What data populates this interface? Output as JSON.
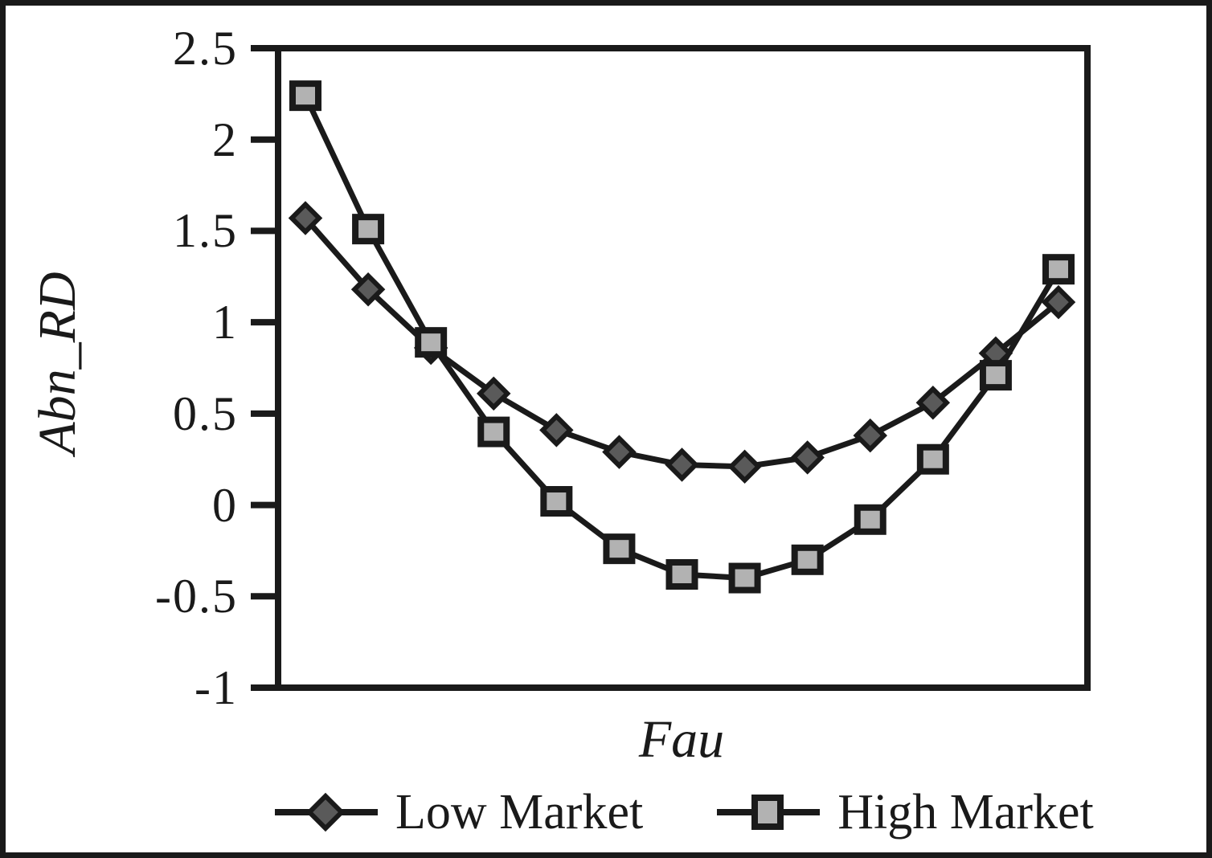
{
  "figure": {
    "background": "#ffffff",
    "frame_color": "#1a1a1a",
    "axis_color": "#1a1a1a",
    "text_color": "#1a1a1a"
  },
  "chart_data": {
    "type": "line",
    "x": [
      1,
      2,
      3,
      4,
      5,
      6,
      7,
      8,
      9,
      10,
      11,
      12,
      13
    ],
    "series": [
      {
        "name": "Low Market",
        "marker": "diamond",
        "marker_fill": "#5a5a5a",
        "line_color": "#1a1a1a",
        "values": [
          1.57,
          1.18,
          0.86,
          0.61,
          0.41,
          0.29,
          0.22,
          0.21,
          0.26,
          0.38,
          0.56,
          0.83,
          1.11
        ]
      },
      {
        "name": "High Market",
        "marker": "square",
        "marker_fill": "#b2b2b2",
        "line_color": "#1a1a1a",
        "values": [
          2.24,
          1.51,
          0.89,
          0.4,
          0.02,
          -0.24,
          -0.38,
          -0.4,
          -0.3,
          -0.08,
          0.25,
          0.71,
          1.29
        ]
      }
    ],
    "title": "",
    "xlabel": "Fau",
    "ylabel": "Abn_RD",
    "ylim": [
      -1,
      2.5
    ],
    "yticks": [
      2.5,
      2,
      1.5,
      1,
      0.5,
      0,
      -0.5,
      -1
    ],
    "ytick_labels": [
      "2.5",
      "2",
      "1.5",
      "1",
      "0.5",
      "0",
      "-0.5",
      "-1"
    ],
    "xtick_labels": [],
    "grid": false,
    "legend_position": "bottom"
  }
}
